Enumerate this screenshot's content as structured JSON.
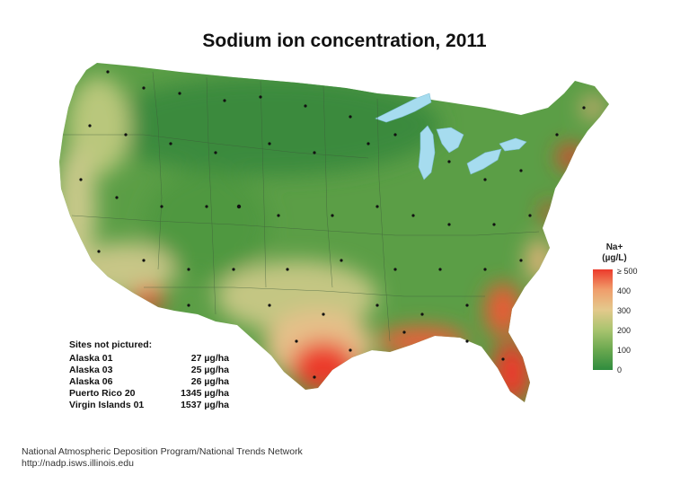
{
  "title": "Sodium ion concentration, 2011",
  "legend": {
    "title_line1": "Na+",
    "title_line2": "(µg/L)",
    "ticks": [
      "≥ 500",
      "400",
      "300",
      "200",
      "100",
      "0"
    ]
  },
  "sites_not_pictured": {
    "heading": "Sites not pictured:",
    "rows": [
      {
        "name": "Alaska 01",
        "value": "27 µg/ha"
      },
      {
        "name": "Alaska 03",
        "value": "25 µg/ha"
      },
      {
        "name": "Alaska 06",
        "value": "26 µg/ha"
      },
      {
        "name": "Puerto Rico 20",
        "value": "1345 µg/ha"
      },
      {
        "name": "Virgin Islands 01",
        "value": "1537 µg/ha"
      }
    ]
  },
  "footer": {
    "line1": "National Atmospheric Deposition Program/National Trends Network",
    "line2": "http://nadp.isws.illinois.edu"
  },
  "colors": {
    "low": "#2f8c3e",
    "mid": "#a9c46f",
    "high": "#ec3a2b",
    "water": "#a6dcef"
  }
}
